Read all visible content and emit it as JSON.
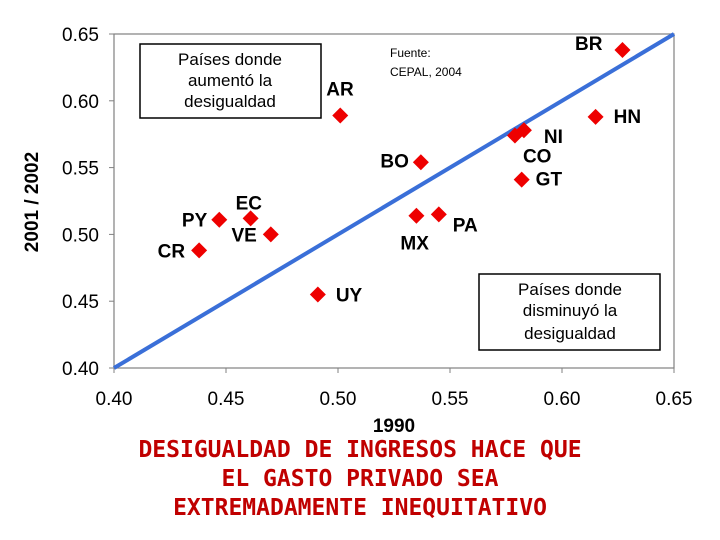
{
  "chart_data": {
    "type": "scatter",
    "xlabel": "1990",
    "ylabel": "2001 / 2002",
    "xlim": [
      0.4,
      0.65
    ],
    "ylim": [
      0.4,
      0.65
    ],
    "x_ticks": [
      "0.40",
      "0.45",
      "0.50",
      "0.55",
      "0.60",
      "0.65"
    ],
    "y_ticks": [
      "0.65",
      "0.60",
      "0.55",
      "0.50",
      "0.45",
      "0.40"
    ],
    "grid": false,
    "reference_line": {
      "from": [
        0.4,
        0.4
      ],
      "to": [
        0.65,
        0.65
      ],
      "color": "#3a6fd8"
    },
    "marker_color": "#ee0000",
    "points": [
      {
        "label": "BR",
        "x": 0.627,
        "y": 0.638
      },
      {
        "label": "HN",
        "x": 0.615,
        "y": 0.588
      },
      {
        "label": "AR",
        "x": 0.501,
        "y": 0.589
      },
      {
        "label": "NI",
        "x": 0.583,
        "y": 0.578
      },
      {
        "label": "CO",
        "x": 0.579,
        "y": 0.574
      },
      {
        "label": "BO",
        "x": 0.537,
        "y": 0.554
      },
      {
        "label": "GT",
        "x": 0.582,
        "y": 0.541
      },
      {
        "label": "PY",
        "x": 0.447,
        "y": 0.511
      },
      {
        "label": "EC",
        "x": 0.461,
        "y": 0.512
      },
      {
        "label": "VE",
        "x": 0.47,
        "y": 0.5
      },
      {
        "label": "CR",
        "x": 0.438,
        "y": 0.488
      },
      {
        "label": "MX",
        "x": 0.535,
        "y": 0.514
      },
      {
        "label": "PA",
        "x": 0.545,
        "y": 0.515
      },
      {
        "label": "UY",
        "x": 0.491,
        "y": 0.455
      }
    ],
    "annotations": {
      "increased": [
        "Países donde",
        "aumentó la",
        "desigualdad"
      ],
      "decreased": [
        "Países donde",
        "disminuyó la",
        "desigualdad"
      ],
      "source": [
        "Fuente:",
        "CEPAL, 2004"
      ]
    }
  },
  "headline": [
    "DESIGUALDAD DE INGRESOS HACE QUE",
    "EL GASTO PRIVADO SEA",
    "EXTREMADAMENTE INEQUITATIVO"
  ]
}
